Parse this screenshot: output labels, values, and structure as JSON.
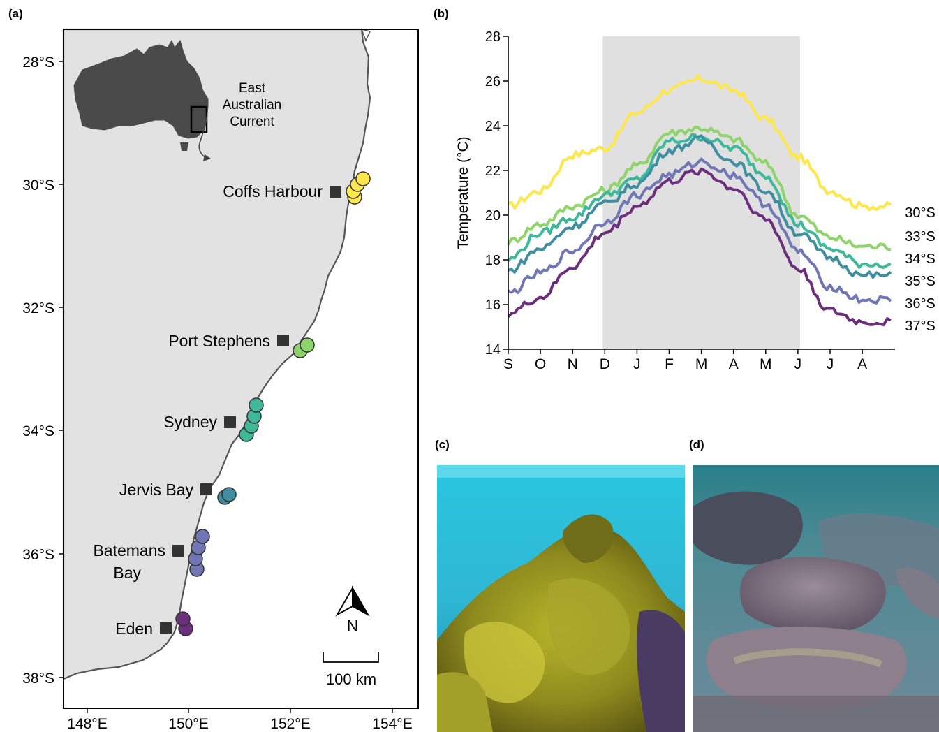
{
  "panels": {
    "a": "(a)",
    "b": "(b)",
    "c": "(c)",
    "d": "(d)"
  },
  "map": {
    "lat_ticks": [
      "28°S",
      "30°S",
      "32°S",
      "34°S",
      "36°S",
      "38°S"
    ],
    "lon_ticks": [
      "148°E",
      "150°E",
      "152°E",
      "154°E"
    ],
    "inset_label": "East Australian Current",
    "inset_label_lines": [
      "East",
      "Australian",
      "Current"
    ],
    "north_label": "N",
    "scale_label": "100 km",
    "sites": [
      {
        "name": "Coffs Harbour",
        "color": "#fde74c"
      },
      {
        "name": "Port Stephens",
        "color": "#8fd46a"
      },
      {
        "name": "Sydney",
        "color": "#3fb89a"
      },
      {
        "name": "Jervis Bay",
        "color": "#3f8fa0"
      },
      {
        "name": "Batemans Bay",
        "color": "#7077b4"
      },
      {
        "name": "Eden",
        "color": "#6b2f7e"
      }
    ],
    "site_label_lines": {
      "batemans_1": "Batemans",
      "batemans_2": "Bay"
    },
    "colors": {
      "land": "#e2e2e2",
      "coast": "#555555",
      "inset_land": "#4a4a4a"
    }
  },
  "chart_data": {
    "type": "line",
    "ylabel": "Temperature (°C)",
    "xlabel": "",
    "categories": [
      "S",
      "O",
      "N",
      "D",
      "J",
      "F",
      "M",
      "A",
      "M",
      "J",
      "J",
      "A"
    ],
    "ylim": [
      14,
      28
    ],
    "yticks": [
      14,
      16,
      18,
      20,
      22,
      24,
      26,
      28
    ],
    "shaded_region": {
      "from": "D",
      "to": "J",
      "color": "#e0e0e0"
    },
    "series": [
      {
        "name": "30°S",
        "color": "#fde74c",
        "values": [
          20.4,
          21.1,
          22.7,
          23.0,
          24.6,
          25.6,
          26.1,
          25.6,
          24.3,
          22.6,
          21.1,
          20.4
        ]
      },
      {
        "name": "33°S",
        "color": "#8fd46a",
        "values": [
          18.8,
          19.6,
          20.4,
          21.1,
          22.2,
          23.7,
          23.9,
          23.4,
          22.3,
          20.0,
          19.0,
          18.6
        ]
      },
      {
        "name": "34°S",
        "color": "#3fb89a",
        "values": [
          18.0,
          19.2,
          19.9,
          20.9,
          21.6,
          23.3,
          23.5,
          23.0,
          21.8,
          19.6,
          18.5,
          17.8
        ]
      },
      {
        "name": "35°S",
        "color": "#3f8fa0",
        "values": [
          17.5,
          18.5,
          19.5,
          20.5,
          21.4,
          22.9,
          23.4,
          22.4,
          21.1,
          19.2,
          18.1,
          17.3
        ]
      },
      {
        "name": "36°S",
        "color": "#7077b4",
        "values": [
          16.5,
          17.4,
          18.4,
          19.7,
          20.9,
          21.8,
          22.4,
          21.8,
          20.5,
          18.4,
          16.8,
          16.2
        ]
      },
      {
        "name": "37°S",
        "color": "#6b2f7e",
        "values": [
          15.6,
          16.3,
          17.7,
          19.2,
          20.4,
          21.5,
          22.0,
          21.2,
          19.8,
          17.6,
          15.7,
          15.2
        ]
      }
    ],
    "legend": "right"
  }
}
